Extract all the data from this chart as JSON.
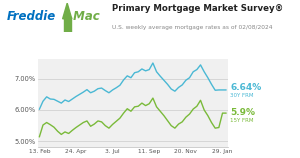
{
  "title": "Primary Mortgage Market Survey®",
  "subtitle": "U.S. weekly average mortgage rates as of 02/08/2024",
  "x_labels": [
    "13. Feb",
    "24. Apr",
    "3. Jul",
    "11. Sep",
    "20. Nov",
    "29. Jan"
  ],
  "y_ticks": [
    5.0,
    6.0,
    7.0
  ],
  "y_labels": [
    "5.00%",
    "6.00%",
    "7.00%"
  ],
  "ylim": [
    4.82,
    7.62
  ],
  "color_30y": "#4ab8d4",
  "color_15y": "#7aba3a",
  "label_30y": "6.64%",
  "sublabel_30y": "30Y FRM",
  "label_15y": "5.9%",
  "sublabel_15y": "15Y FRM",
  "bg_color": "#f0f0f0",
  "freddie_blue": "#0070c0",
  "freddie_green": "#70ad47",
  "x_tick_positions": [
    0,
    10,
    20,
    30,
    40,
    50
  ],
  "x_30y": [
    0,
    1,
    2,
    3,
    4,
    5,
    6,
    7,
    8,
    9,
    10,
    11,
    12,
    13,
    14,
    15,
    16,
    17,
    18,
    19,
    20,
    21,
    22,
    23,
    24,
    25,
    26,
    27,
    28,
    29,
    30,
    31,
    32,
    33,
    34,
    35,
    36,
    37,
    38,
    39,
    40,
    41,
    42,
    43,
    44,
    45,
    46,
    47,
    48,
    49,
    50,
    51
  ],
  "y_30y": [
    6.02,
    6.28,
    6.42,
    6.35,
    6.34,
    6.28,
    6.22,
    6.32,
    6.27,
    6.35,
    6.43,
    6.5,
    6.57,
    6.65,
    6.55,
    6.6,
    6.68,
    6.7,
    6.62,
    6.55,
    6.64,
    6.71,
    6.79,
    6.96,
    7.09,
    7.03,
    7.19,
    7.22,
    7.31,
    7.25,
    7.29,
    7.5,
    7.22,
    7.08,
    6.95,
    6.82,
    6.67,
    6.6,
    6.72,
    6.8,
    6.95,
    7.03,
    7.22,
    7.29,
    7.44,
    7.22,
    7.03,
    6.82,
    6.63,
    6.64,
    6.64,
    6.64
  ],
  "y_15y": [
    5.14,
    5.52,
    5.6,
    5.53,
    5.45,
    5.32,
    5.22,
    5.3,
    5.25,
    5.35,
    5.44,
    5.52,
    5.6,
    5.65,
    5.48,
    5.55,
    5.65,
    5.62,
    5.5,
    5.42,
    5.54,
    5.64,
    5.74,
    5.9,
    6.04,
    5.96,
    6.1,
    6.12,
    6.22,
    6.14,
    6.2,
    6.38,
    6.1,
    5.96,
    5.82,
    5.66,
    5.5,
    5.42,
    5.55,
    5.62,
    5.77,
    5.87,
    6.03,
    6.12,
    6.31,
    6.0,
    5.82,
    5.6,
    5.42,
    5.44,
    5.9,
    5.9
  ]
}
